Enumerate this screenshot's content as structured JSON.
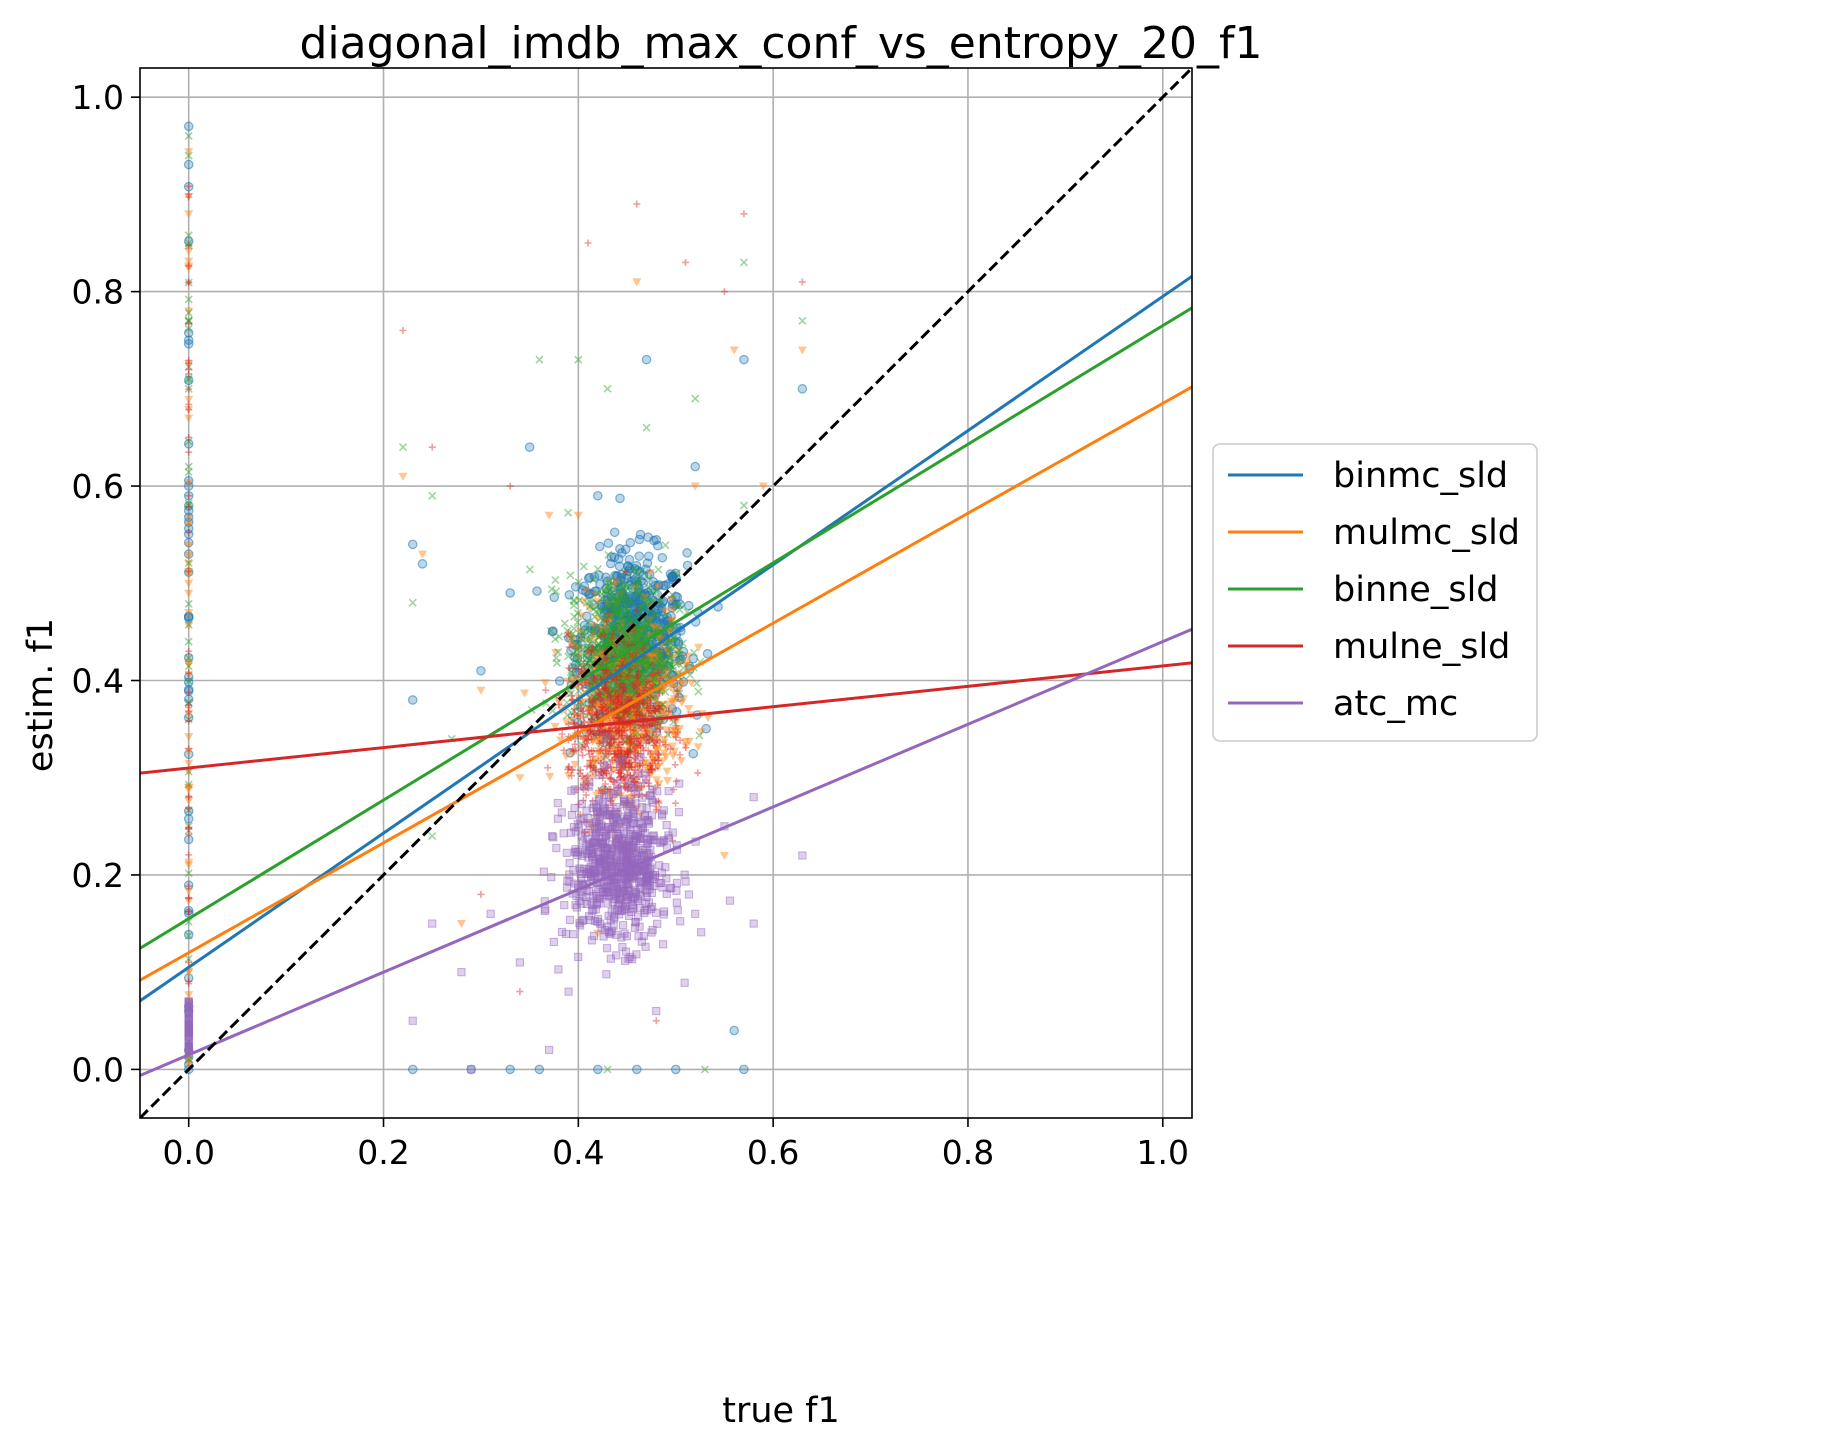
{
  "chart_data": {
    "type": "scatter",
    "title": "diagonal_imdb_max_conf_vs_entropy_20_f1",
    "xlabel": "true f1",
    "ylabel": "estim. f1",
    "xlim": [
      -0.05,
      1.03
    ],
    "ylim": [
      -0.05,
      1.03
    ],
    "xticks": [
      0.0,
      0.2,
      0.4,
      0.6,
      0.8,
      1.0
    ],
    "yticks": [
      0.0,
      0.2,
      0.4,
      0.6,
      0.8,
      1.0
    ],
    "xtick_labels": [
      "0.0",
      "0.2",
      "0.4",
      "0.6",
      "0.8",
      "1.0"
    ],
    "ytick_labels": [
      "0.0",
      "0.2",
      "0.4",
      "0.6",
      "0.8",
      "1.0"
    ],
    "grid": true,
    "legend_position": "right",
    "diagonal": {
      "style": "dashed",
      "color": "#000000",
      "from": [
        -0.05,
        -0.05
      ],
      "to": [
        1.03,
        1.03
      ]
    },
    "series": [
      {
        "name": "binmc_sld",
        "color": "#1f77b4",
        "marker": "circle",
        "fit_line": {
          "intercept": 0.105,
          "slope": 0.69
        },
        "cluster": {
          "x_mean": 0.455,
          "y_mean": 0.44,
          "x_sd": 0.028,
          "y_sd": 0.045
        },
        "sample_points": [
          [
            0.0,
            0.97
          ],
          [
            0.0,
            0.75
          ],
          [
            0.0,
            0.59
          ],
          [
            0.0,
            0.53
          ],
          [
            0.0,
            0.06
          ],
          [
            0.0,
            0.0
          ],
          [
            0.23,
            0.54
          ],
          [
            0.23,
            0.38
          ],
          [
            0.24,
            0.52
          ],
          [
            0.23,
            0.0
          ],
          [
            0.3,
            0.41
          ],
          [
            0.33,
            0.49
          ],
          [
            0.35,
            0.64
          ],
          [
            0.42,
            0.59
          ],
          [
            0.47,
            0.73
          ],
          [
            0.52,
            0.62
          ],
          [
            0.57,
            0.73
          ],
          [
            0.63,
            0.7
          ],
          [
            0.29,
            0.0
          ],
          [
            0.33,
            0.0
          ],
          [
            0.36,
            0.0
          ],
          [
            0.42,
            0.0
          ],
          [
            0.46,
            0.0
          ],
          [
            0.5,
            0.0
          ],
          [
            0.57,
            0.0
          ],
          [
            0.56,
            0.04
          ]
        ]
      },
      {
        "name": "mulmc_sld",
        "color": "#ff7f0e",
        "marker": "triangle-down",
        "fit_line": {
          "intercept": 0.12,
          "slope": 0.565
        },
        "cluster": {
          "x_mean": 0.45,
          "y_mean": 0.38,
          "x_sd": 0.028,
          "y_sd": 0.045
        },
        "sample_points": [
          [
            0.0,
            0.88
          ],
          [
            0.0,
            0.78
          ],
          [
            0.0,
            0.67
          ],
          [
            0.0,
            0.56
          ],
          [
            0.0,
            0.5
          ],
          [
            0.0,
            0.47
          ],
          [
            0.0,
            0.29
          ],
          [
            0.0,
            0.1
          ],
          [
            0.22,
            0.61
          ],
          [
            0.24,
            0.53
          ],
          [
            0.28,
            0.15
          ],
          [
            0.3,
            0.39
          ],
          [
            0.34,
            0.3
          ],
          [
            0.37,
            0.57
          ],
          [
            0.4,
            0.57
          ],
          [
            0.46,
            0.81
          ],
          [
            0.52,
            0.6
          ],
          [
            0.56,
            0.74
          ],
          [
            0.59,
            0.6
          ],
          [
            0.63,
            0.74
          ],
          [
            0.42,
            0.14
          ],
          [
            0.55,
            0.22
          ]
        ]
      },
      {
        "name": "binne_sld",
        "color": "#2ca02c",
        "marker": "x",
        "fit_line": {
          "intercept": 0.155,
          "slope": 0.61
        },
        "cluster": {
          "x_mean": 0.445,
          "y_mean": 0.43,
          "x_sd": 0.028,
          "y_sd": 0.04
        },
        "sample_points": [
          [
            0.0,
            0.96
          ],
          [
            0.0,
            0.85
          ],
          [
            0.0,
            0.77
          ],
          [
            0.0,
            0.7
          ],
          [
            0.0,
            0.62
          ],
          [
            0.0,
            0.44
          ],
          [
            0.0,
            0.36
          ],
          [
            0.0,
            0.25
          ],
          [
            0.0,
            0.01
          ],
          [
            0.22,
            0.64
          ],
          [
            0.23,
            0.48
          ],
          [
            0.25,
            0.59
          ],
          [
            0.36,
            0.73
          ],
          [
            0.4,
            0.73
          ],
          [
            0.43,
            0.7
          ],
          [
            0.47,
            0.66
          ],
          [
            0.52,
            0.69
          ],
          [
            0.57,
            0.58
          ],
          [
            0.57,
            0.83
          ],
          [
            0.63,
            0.77
          ],
          [
            0.43,
            0.0
          ],
          [
            0.53,
            0.0
          ],
          [
            0.27,
            0.34
          ],
          [
            0.25,
            0.24
          ]
        ]
      },
      {
        "name": "mulne_sld",
        "color": "#d62728",
        "marker": "plus",
        "fit_line": {
          "intercept": 0.31,
          "slope": 0.105
        },
        "cluster": {
          "x_mean": 0.44,
          "y_mean": 0.35,
          "x_sd": 0.025,
          "y_sd": 0.045
        },
        "sample_points": [
          [
            0.0,
            0.9
          ],
          [
            0.0,
            0.81
          ],
          [
            0.0,
            0.72
          ],
          [
            0.0,
            0.65
          ],
          [
            0.0,
            0.43
          ],
          [
            0.0,
            0.33
          ],
          [
            0.0,
            0.28
          ],
          [
            0.0,
            0.11
          ],
          [
            0.22,
            0.76
          ],
          [
            0.25,
            0.64
          ],
          [
            0.3,
            0.18
          ],
          [
            0.33,
            0.6
          ],
          [
            0.41,
            0.85
          ],
          [
            0.46,
            0.89
          ],
          [
            0.51,
            0.83
          ],
          [
            0.55,
            0.8
          ],
          [
            0.57,
            0.88
          ],
          [
            0.63,
            0.81
          ],
          [
            0.34,
            0.08
          ],
          [
            0.48,
            0.05
          ]
        ]
      },
      {
        "name": "atc_mc",
        "color": "#9467bd",
        "marker": "square",
        "fit_line": {
          "intercept": 0.015,
          "slope": 0.425
        },
        "cluster": {
          "x_mean": 0.44,
          "y_mean": 0.21,
          "x_sd": 0.027,
          "y_sd": 0.04
        },
        "sample_points": [
          [
            0.0,
            0.07
          ],
          [
            0.0,
            0.06
          ],
          [
            0.0,
            0.05
          ],
          [
            0.0,
            0.04
          ],
          [
            0.0,
            0.02
          ],
          [
            0.23,
            0.05
          ],
          [
            0.25,
            0.15
          ],
          [
            0.28,
            0.1
          ],
          [
            0.29,
            0.0
          ],
          [
            0.31,
            0.16
          ],
          [
            0.34,
            0.11
          ],
          [
            0.37,
            0.02
          ],
          [
            0.39,
            0.08
          ],
          [
            0.48,
            0.06
          ],
          [
            0.52,
            0.16
          ],
          [
            0.55,
            0.25
          ],
          [
            0.58,
            0.28
          ],
          [
            0.63,
            0.22
          ],
          [
            0.58,
            0.15
          ]
        ]
      }
    ]
  }
}
